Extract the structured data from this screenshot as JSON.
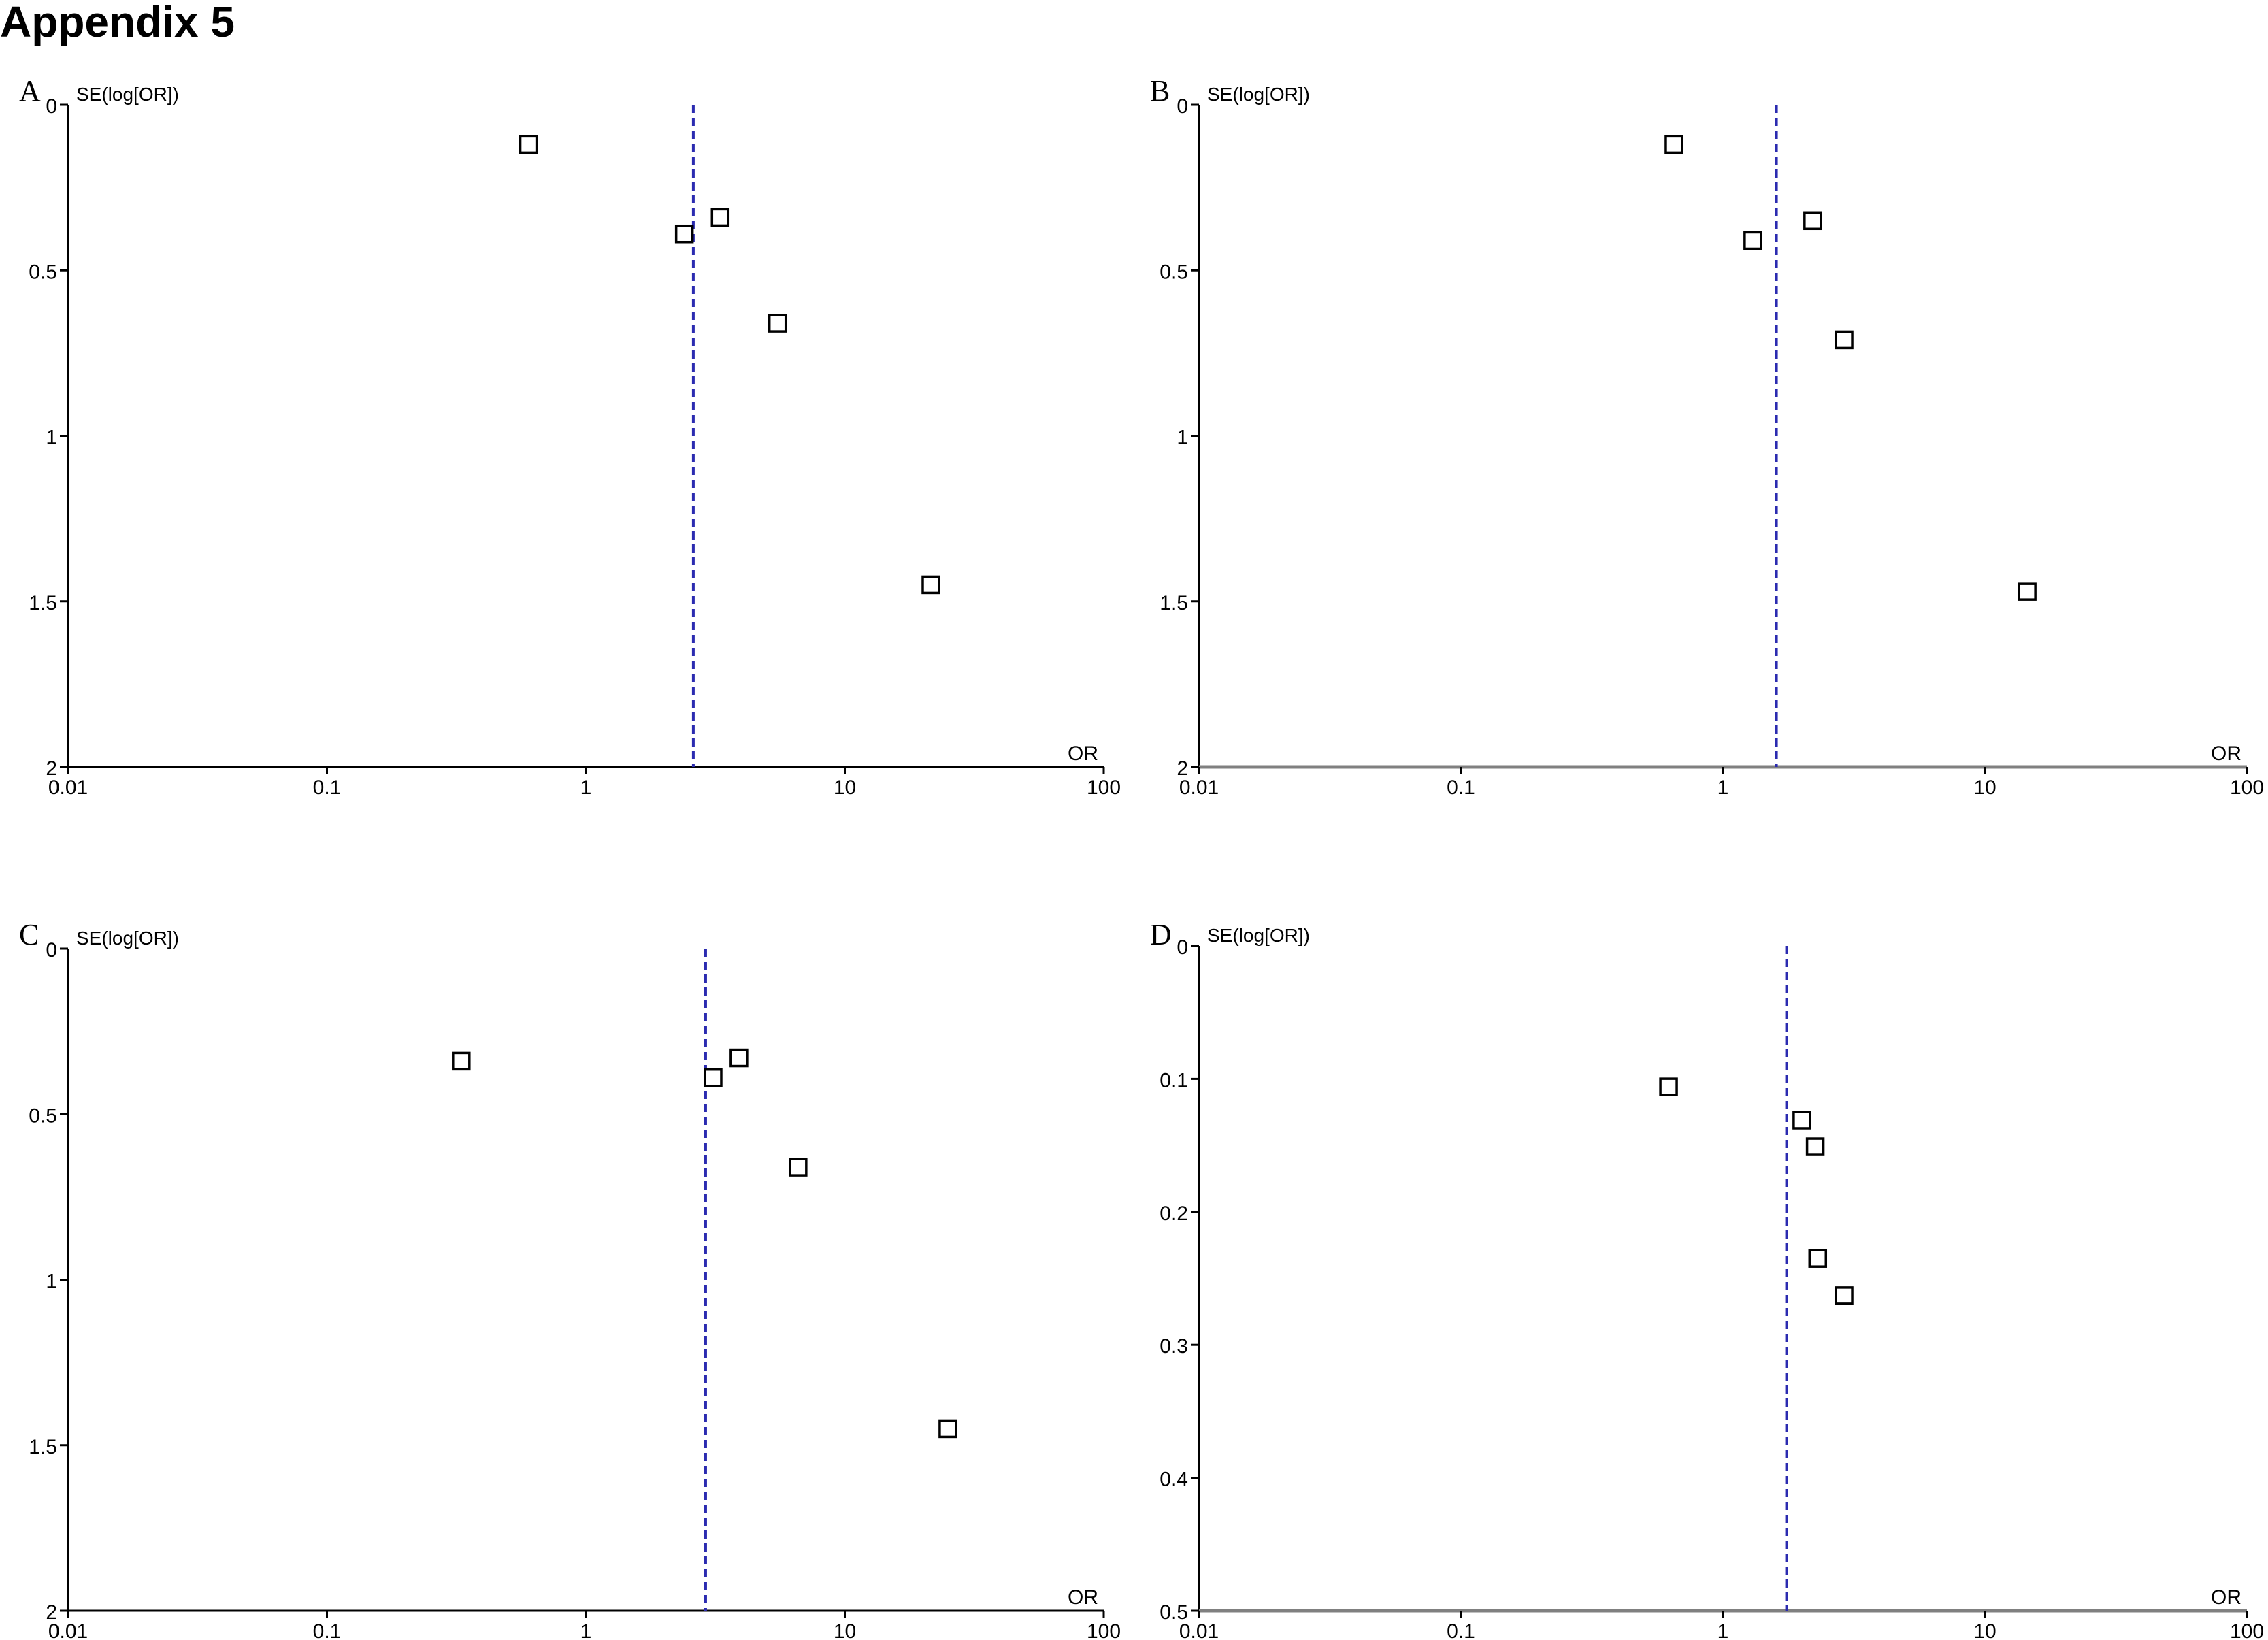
{
  "page": {
    "heading": "Appendix 5"
  },
  "colors": {
    "axis": "#000000",
    "axis_gray": "#808080",
    "reference_line": "#2b2bb0",
    "marker_stroke": "#000000",
    "marker_fill": "#ffffff"
  },
  "panels": [
    {
      "letter": "A",
      "ylabel": "SE(log[OR])",
      "xlabel": "OR"
    },
    {
      "letter": "B",
      "ylabel": "SE(log[OR])",
      "xlabel": "OR"
    },
    {
      "letter": "C",
      "ylabel": "SE(log[OR])",
      "xlabel": "OR"
    },
    {
      "letter": "D",
      "ylabel": "SE(log[OR])",
      "xlabel": "OR"
    }
  ],
  "chart_data": [
    {
      "type": "scatter",
      "panel": "A",
      "xlabel": "OR",
      "ylabel": "SE(log[OR])",
      "x_scale": "log",
      "xlim": [
        0.01,
        100
      ],
      "x_ticks": [
        "0.01",
        "0.1",
        "1",
        "10",
        "100"
      ],
      "ylim": [
        0,
        2
      ],
      "y_inverted": true,
      "y_ticks": [
        "0",
        "0.5",
        "1",
        "1.5",
        "2"
      ],
      "reference_or": 2.6,
      "points": [
        {
          "or": 0.6,
          "se": 0.12
        },
        {
          "or": 2.4,
          "se": 0.39
        },
        {
          "or": 3.3,
          "se": 0.34
        },
        {
          "or": 5.5,
          "se": 0.66
        },
        {
          "or": 21.5,
          "se": 1.45
        }
      ]
    },
    {
      "type": "scatter",
      "panel": "B",
      "xlabel": "OR",
      "ylabel": "SE(log[OR])",
      "x_scale": "log",
      "xlim": [
        0.01,
        100
      ],
      "x_ticks": [
        "0.01",
        "0.1",
        "1",
        "10",
        "100"
      ],
      "ylim": [
        0,
        2
      ],
      "y_inverted": true,
      "y_ticks": [
        "0",
        "0.5",
        "1",
        "1.5",
        "2"
      ],
      "reference_or": 1.6,
      "points": [
        {
          "or": 0.65,
          "se": 0.12
        },
        {
          "or": 1.3,
          "se": 0.41
        },
        {
          "or": 2.2,
          "se": 0.35
        },
        {
          "or": 2.9,
          "se": 0.71
        },
        {
          "or": 14.5,
          "se": 1.47
        }
      ]
    },
    {
      "type": "scatter",
      "panel": "C",
      "xlabel": "OR",
      "ylabel": "SE(log[OR])",
      "x_scale": "log",
      "xlim": [
        0.01,
        100
      ],
      "x_ticks": [
        "0.01",
        "0.1",
        "1",
        "10",
        "100"
      ],
      "ylim": [
        0,
        2
      ],
      "y_inverted": true,
      "y_ticks": [
        "0",
        "0.5",
        "1",
        "1.5",
        "2"
      ],
      "reference_or": 2.9,
      "points": [
        {
          "or": 0.33,
          "se": 0.34
        },
        {
          "or": 3.1,
          "se": 0.39
        },
        {
          "or": 3.9,
          "se": 0.33
        },
        {
          "or": 6.6,
          "se": 0.66
        },
        {
          "or": 25.0,
          "se": 1.45
        }
      ]
    },
    {
      "type": "scatter",
      "panel": "D",
      "xlabel": "OR",
      "ylabel": "SE(log[OR])",
      "x_scale": "log",
      "xlim": [
        0.01,
        100
      ],
      "x_ticks": [
        "0.01",
        "0.1",
        "1",
        "10",
        "100"
      ],
      "ylim": [
        0,
        0.5
      ],
      "y_inverted": true,
      "y_ticks": [
        "0",
        "0.1",
        "0.2",
        "0.3",
        "0.4",
        "0.5"
      ],
      "reference_or": 1.75,
      "points": [
        {
          "or": 0.62,
          "se": 0.106
        },
        {
          "or": 2.0,
          "se": 0.131
        },
        {
          "or": 2.25,
          "se": 0.151
        },
        {
          "or": 2.3,
          "se": 0.235
        },
        {
          "or": 2.9,
          "se": 0.263
        }
      ]
    }
  ]
}
